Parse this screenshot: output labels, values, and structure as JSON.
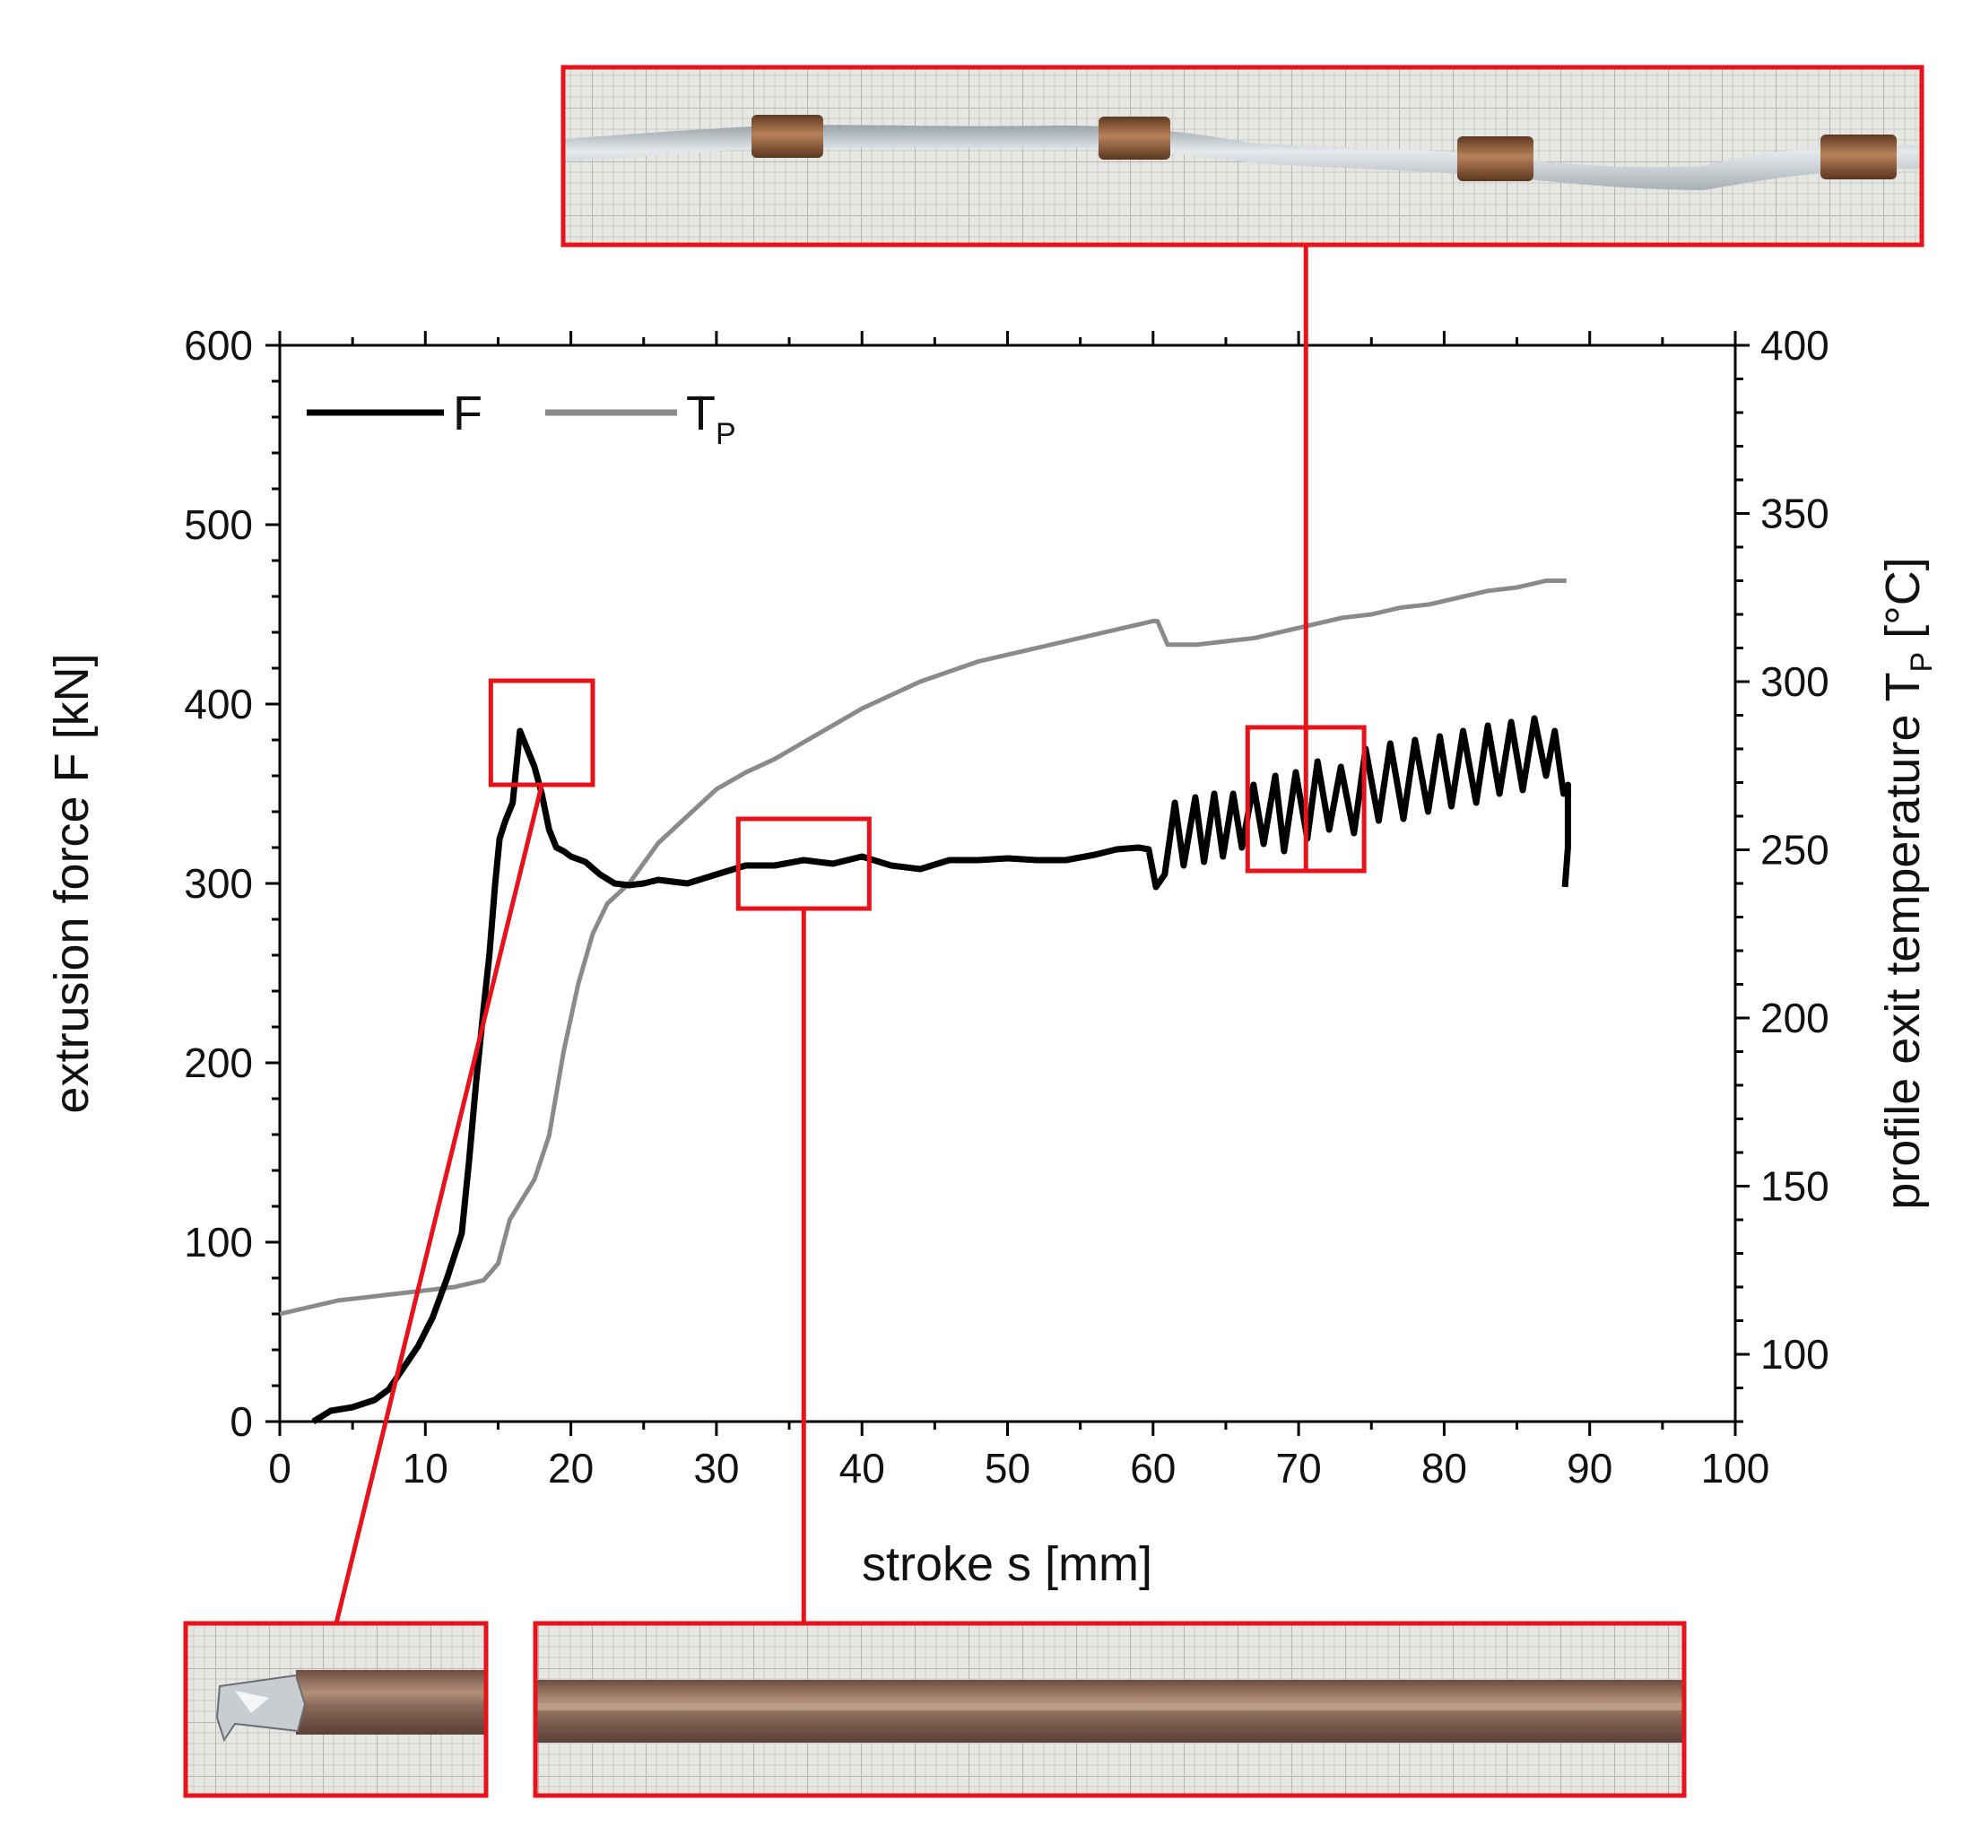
{
  "colors": {
    "force": "#000000",
    "temperature": "#8a8a8a",
    "highlight": "#e8121a"
  },
  "photos": {
    "top": "profile photo: wavy profile with copper segments",
    "bottom_left": "profile photo: profile tip at force peak",
    "bottom_right": "profile photo: straight profile"
  },
  "chart_data": {
    "type": "line",
    "xlabel": "stroke s [mm]",
    "ylabel": "extrusion force F [kN]",
    "y2label_main": "profile exit temperature T",
    "y2label_sub": "P",
    "y2label_end": " [°C]",
    "xlim": [
      0,
      100
    ],
    "ylim": [
      0,
      600
    ],
    "y2lim": [
      80,
      400
    ],
    "x_ticks": [
      "0",
      "10",
      "20",
      "30",
      "40",
      "50",
      "60",
      "70",
      "80",
      "90",
      "100"
    ],
    "y_ticks": [
      "0",
      "100",
      "200",
      "300",
      "400",
      "500",
      "600"
    ],
    "y2_ticks": [
      "100",
      "150",
      "200",
      "250",
      "300",
      "350",
      "400"
    ],
    "grid": false,
    "legend_position": "top-left",
    "legend": {
      "force_label": "F",
      "temp_label_main": "T",
      "temp_label_sub": "P"
    },
    "series": [
      {
        "name": "F",
        "axis": "left",
        "x": [
          2.3,
          3.5,
          5,
          6.5,
          7.5,
          8.5,
          9.5,
          10.5,
          11.5,
          12.5,
          13,
          13.5,
          14,
          14.4,
          14.8,
          15.1,
          15.5,
          16,
          16.5,
          17,
          17.5,
          18,
          18.5,
          19,
          19.5,
          20,
          21,
          22,
          23,
          24,
          25,
          26,
          28,
          30,
          32,
          34,
          36,
          38,
          40,
          42,
          44,
          46,
          48,
          50,
          52,
          54,
          56,
          57.5,
          59,
          59.7,
          60.2,
          60.8,
          61.5,
          62.1,
          62.9,
          63.5,
          64.2,
          64.8,
          65.5,
          66.1,
          66.9,
          67.6,
          68.4,
          69,
          69.8,
          70.6,
          71.3,
          72.1,
          72.9,
          73.8,
          74.6,
          75.5,
          76.3,
          77.2,
          78,
          78.9,
          79.7,
          80.5,
          81.3,
          82.2,
          83,
          83.8,
          84.6,
          85.4,
          86.2,
          87,
          87.6,
          88.2,
          88.5,
          88.5,
          88.3
        ],
        "values": [
          0,
          6,
          8,
          12,
          18,
          30,
          42,
          58,
          80,
          105,
          145,
          190,
          230,
          260,
          300,
          325,
          335,
          345,
          385,
          375,
          365,
          350,
          330,
          320,
          318,
          315,
          312,
          305,
          300,
          299,
          300,
          302,
          300,
          305,
          310,
          310,
          313,
          311,
          315,
          310,
          308,
          313,
          313,
          314,
          313,
          313,
          316,
          319,
          320,
          319,
          298,
          305,
          345,
          310,
          348,
          312,
          350,
          315,
          350,
          320,
          355,
          322,
          360,
          318,
          362,
          325,
          368,
          330,
          365,
          328,
          375,
          335,
          378,
          336,
          380,
          340,
          382,
          343,
          385,
          345,
          388,
          350,
          390,
          352,
          392,
          360,
          385,
          350,
          355,
          320,
          298
        ]
      },
      {
        "name": "T_P",
        "axis": "right",
        "x": [
          0,
          2,
          4,
          6,
          8,
          10,
          12,
          14,
          15,
          15.8,
          16.5,
          17.5,
          18.5,
          19.5,
          20.5,
          21.5,
          22.5,
          24,
          26,
          28,
          30,
          32,
          34,
          36,
          38,
          40,
          42,
          44,
          46,
          48,
          50,
          52,
          54,
          56,
          58,
          60,
          60.3,
          61,
          63,
          65,
          67,
          69,
          71,
          73,
          75,
          77,
          79,
          81,
          83,
          85,
          87,
          88.4
        ],
        "values": [
          112,
          114,
          116,
          117,
          118,
          119,
          120,
          122,
          127,
          140,
          145,
          152,
          165,
          190,
          210,
          225,
          234,
          240,
          252,
          260,
          268,
          273,
          277,
          282,
          287,
          292,
          296,
          300,
          303,
          306,
          308,
          310,
          312,
          314,
          316,
          318,
          318,
          311,
          311,
          312,
          313,
          315,
          317,
          319,
          320,
          322,
          323,
          325,
          327,
          328,
          330,
          330
        ]
      }
    ],
    "highlight_boxes": [
      {
        "x_range": [
          14.5,
          21.5
        ],
        "y_range": [
          355,
          413
        ]
      },
      {
        "x_range": [
          31.5,
          40.5
        ],
        "y_range": [
          286,
          336
        ]
      },
      {
        "x_range": [
          66.5,
          74.5
        ],
        "y_range": [
          307,
          387
        ]
      }
    ]
  }
}
